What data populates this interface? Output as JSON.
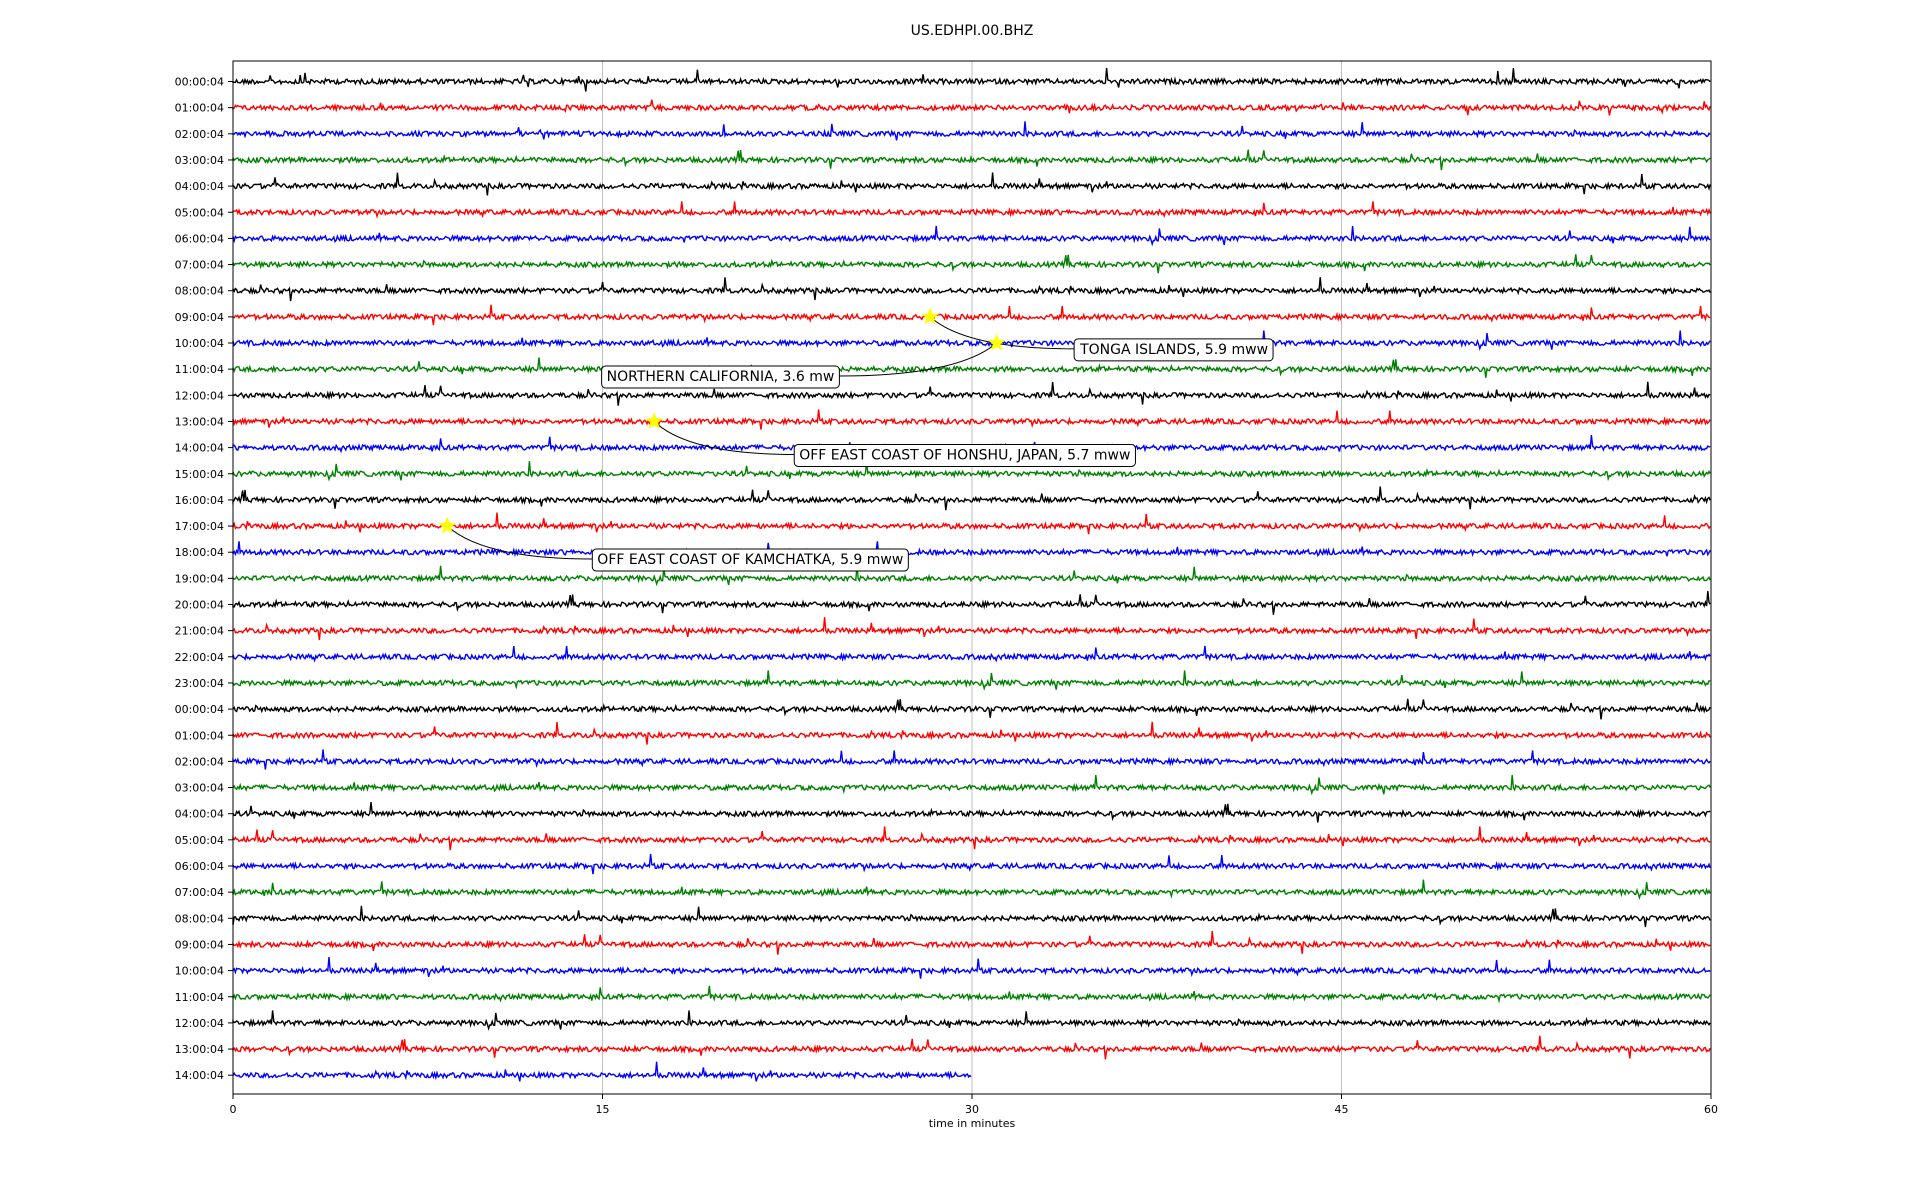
{
  "chart_data": {
    "type": "line",
    "title": "US.EDHPI.00.BHZ",
    "xlabel": "time in minutes",
    "ylabel": "",
    "xlim": [
      0,
      60
    ],
    "x_ticks": [
      0,
      15,
      30,
      45,
      60
    ],
    "grid": "vertical",
    "trace_colors": [
      "#000000",
      "#ff0000",
      "#0000ff",
      "#008000"
    ],
    "row_labels": [
      "00:00:04",
      "01:00:04",
      "02:00:04",
      "03:00:04",
      "04:00:04",
      "05:00:04",
      "06:00:04",
      "07:00:04",
      "08:00:04",
      "09:00:04",
      "10:00:04",
      "11:00:04",
      "12:00:04",
      "13:00:04",
      "14:00:04",
      "15:00:04",
      "16:00:04",
      "17:00:04",
      "18:00:04",
      "19:00:04",
      "20:00:04",
      "21:00:04",
      "22:00:04",
      "23:00:04",
      "00:00:04",
      "01:00:04",
      "02:00:04",
      "03:00:04",
      "04:00:04",
      "05:00:04",
      "06:00:04",
      "07:00:04",
      "08:00:04",
      "09:00:04",
      "10:00:04",
      "11:00:04",
      "12:00:04",
      "13:00:04",
      "14:00:04"
    ],
    "last_row_end_minute": 30,
    "events": [
      {
        "label": "TONGA ISLANDS, 5.9 mww",
        "row": 9,
        "minute": 28.3
      },
      {
        "label": "NORTHERN CALIFORNIA, 3.6 mw",
        "row": 10,
        "minute": 31.0
      },
      {
        "label": "OFF EAST COAST OF HONSHU, JAPAN, 5.7 mww",
        "row": 13,
        "minute": 17.1
      },
      {
        "label": "OFF EAST COAST OF KAMCHATKA, 5.9 mww",
        "row": 17,
        "minute": 8.7
      }
    ]
  }
}
